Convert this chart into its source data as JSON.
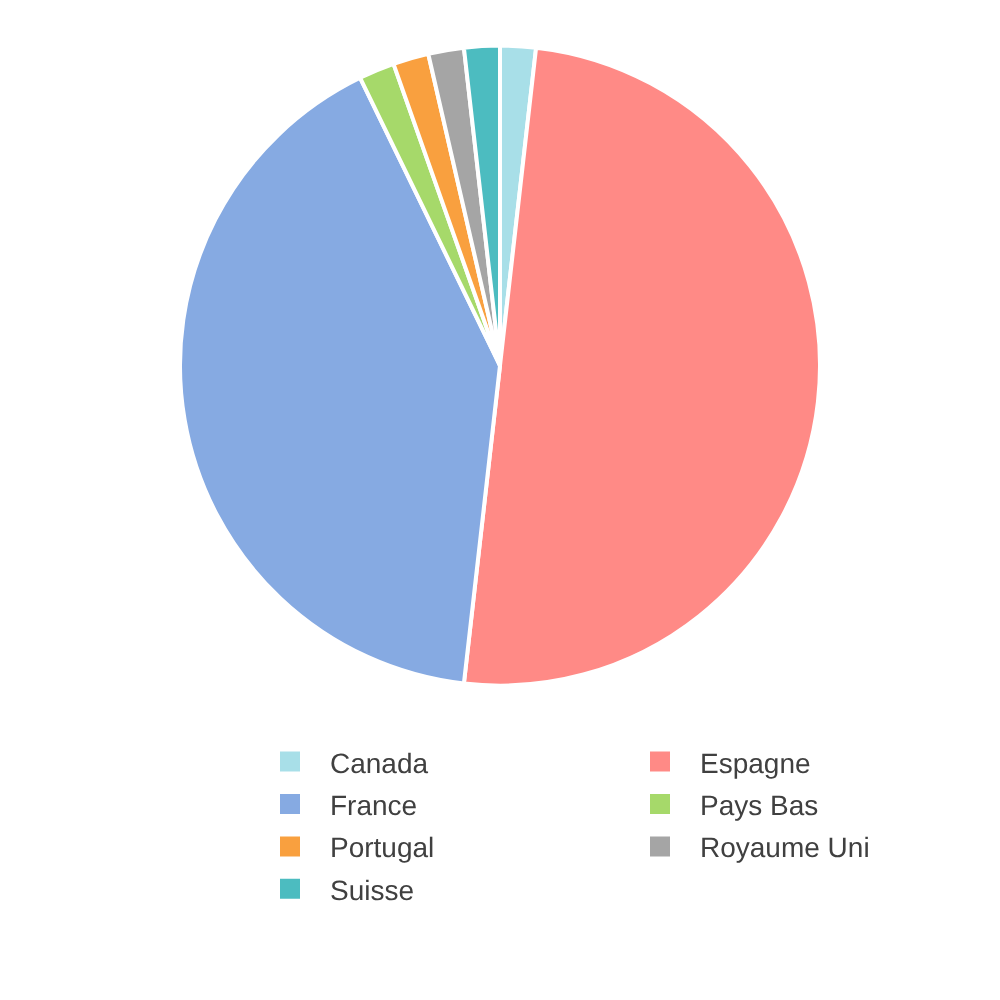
{
  "chart_data": {
    "type": "pie",
    "categories": [
      "Canada",
      "Espagne",
      "France",
      "Pays Bas",
      "Portugal",
      "Royaume Uni",
      "Suisse"
    ],
    "values": [
      1.8,
      50,
      41,
      1.8,
      1.8,
      1.8,
      1.8
    ],
    "colors": [
      "#a8dfe8",
      "#ff8a86",
      "#86aae2",
      "#a6d96a",
      "#f9a03f",
      "#a5a5a5",
      "#4cbcc0"
    ],
    "legend": "bottom"
  }
}
